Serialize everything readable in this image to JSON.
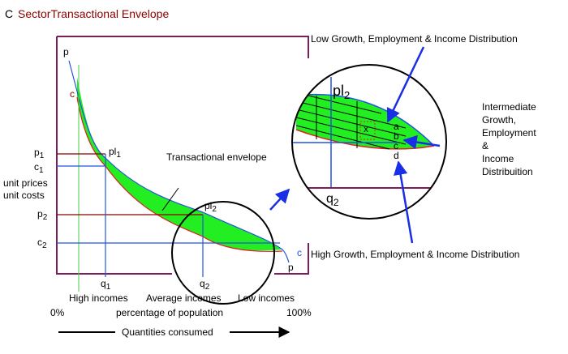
{
  "header": {
    "prefix": "C",
    "title": "SectorTransactional Envelope"
  },
  "axis": {
    "p_top": "p",
    "c_top": "c",
    "p1": {
      "base": "p",
      "sub": "1"
    },
    "c1": {
      "base": "c",
      "sub": "1"
    },
    "unit_prices": "unit prices",
    "unit_costs": "unit costs",
    "p2": {
      "base": "p",
      "sub": "2"
    },
    "c2": {
      "base": "c",
      "sub": "2"
    },
    "q1": {
      "base": "q",
      "sub": "1"
    },
    "q2": {
      "base": "q",
      "sub": "2"
    },
    "high_incomes": "High incomes",
    "average_incomes": "Average incomes",
    "low_incomes": "Low incomes",
    "zero": "0%",
    "percentage": "percentage of population",
    "hundred": "100%",
    "quantities": "Quantities consumed"
  },
  "curves": {
    "pl1": {
      "base": "pl",
      "sub": "1"
    },
    "pl2": {
      "base": "pl",
      "sub": "2"
    },
    "envelope": "Transactional envelope",
    "c_end": "c",
    "p_end": "p"
  },
  "zoom": {
    "pl2": {
      "base": "pl",
      "sub": "2"
    },
    "q2": {
      "base": "q",
      "sub": "2"
    },
    "x": "x",
    "a": "a",
    "b": "b",
    "c": "c",
    "d": "d"
  },
  "annotations": {
    "low": "Low Growth, Employment & Income Distribution",
    "intermediate": [
      "Intermediate",
      "Growth,",
      "Employment",
      "&",
      "Income",
      "Distribuition"
    ],
    "high": "High Growth, Employment & Income Distribution"
  }
}
